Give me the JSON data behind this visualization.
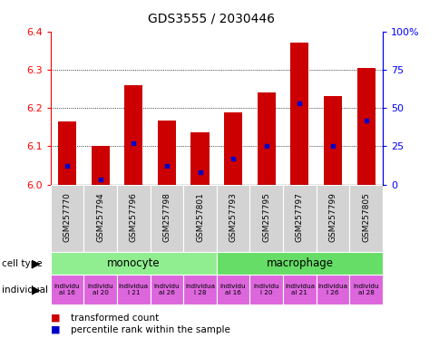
{
  "title": "GDS3555 / 2030446",
  "samples": [
    "GSM257770",
    "GSM257794",
    "GSM257796",
    "GSM257798",
    "GSM257801",
    "GSM257793",
    "GSM257795",
    "GSM257797",
    "GSM257799",
    "GSM257805"
  ],
  "bar_tops": [
    6.165,
    6.1,
    6.26,
    6.168,
    6.135,
    6.188,
    6.24,
    6.37,
    6.232,
    6.305
  ],
  "percentile_ranks": [
    12,
    3,
    27,
    12,
    8,
    17,
    25,
    53,
    25,
    42
  ],
  "ymin": 6.0,
  "ymax": 6.4,
  "y_ticks": [
    6.0,
    6.1,
    6.2,
    6.3,
    6.4
  ],
  "right_axis_ticks": [
    0,
    25,
    50,
    75,
    100
  ],
  "bar_color": "#cc0000",
  "dot_color": "#0000cc",
  "sample_bg": "#d3d3d3",
  "cell_type_bg_mono": "#90ee90",
  "cell_type_bg_macro": "#66dd66",
  "individual_bg": "#dd66dd",
  "legend_red": "transformed count",
  "legend_blue": "percentile rank within the sample",
  "bar_width": 0.55,
  "grid_lines": [
    6.1,
    6.2,
    6.3
  ],
  "ind_labels": [
    "individu\nal 16",
    "individu\nal 20",
    "individua\nl 21",
    "individu\nal 26",
    "individua\nl 28",
    "individu\nal 16",
    "individu\nl 20",
    "individua\nal 21",
    "individua\nl 26",
    "individu\nal 28"
  ]
}
